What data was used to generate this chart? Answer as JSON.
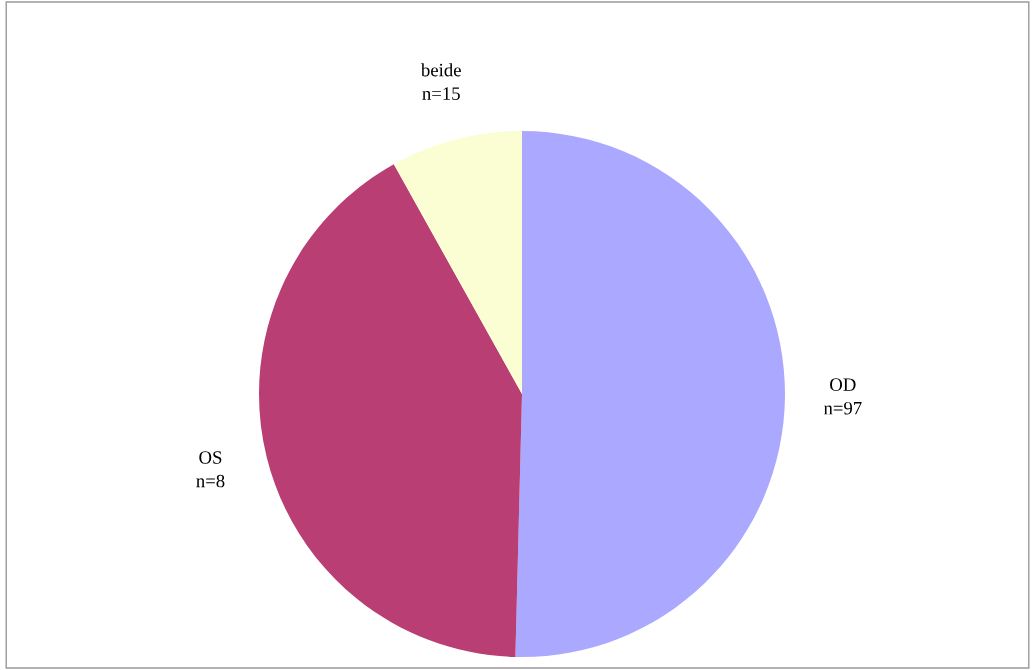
{
  "chart_data": {
    "type": "pie",
    "categories": [
      "OD\nn=97",
      "OS\nn=8",
      "beide\nn=15"
    ],
    "values": [
      50.4,
      41.5,
      8.1
    ],
    "colors": [
      "#aaa8ff",
      "#b83e74",
      "#fbfdd2"
    ],
    "legend": false
  }
}
